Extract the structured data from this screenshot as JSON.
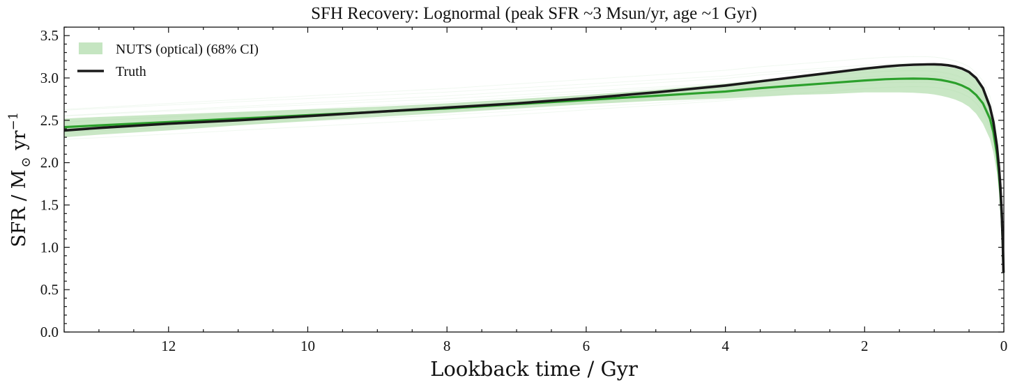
{
  "chart_data": {
    "type": "line",
    "title": "SFH Recovery: Lognormal (peak SFR ~3 Msun/yr, age ~1 Gyr)",
    "xlabel": "Lookback time / Gyr",
    "ylabel": "SFR / M",
    "ylabel_sub": "⊙",
    "ylabel_unit": "yr",
    "ylabel_exp": "−1",
    "xlim": [
      13.5,
      0
    ],
    "ylim": [
      0,
      3.6
    ],
    "x_ticks": [
      12,
      10,
      8,
      6,
      4,
      2,
      0
    ],
    "y_ticks": [
      0.0,
      0.5,
      1.0,
      1.5,
      2.0,
      2.5,
      3.0,
      3.5
    ],
    "x_tick_labels": [
      "12",
      "10",
      "8",
      "6",
      "4",
      "2",
      "0"
    ],
    "y_tick_labels": [
      "0.0",
      "0.5",
      "1.0",
      "1.5",
      "2.0",
      "2.5",
      "3.0",
      "3.5"
    ],
    "legend": {
      "placement": "top-left",
      "entries": [
        {
          "label": "NUTS (optical) (68% CI)",
          "kind": "band"
        },
        {
          "label": "Truth",
          "kind": "line"
        }
      ]
    },
    "colors": {
      "truth": "#1a1a1a",
      "median": "#2ca02c",
      "band": "#b7dfb2",
      "samples": "#2ca02c"
    },
    "x": [
      13.5,
      13,
      12,
      11,
      10,
      9,
      8,
      7,
      6,
      5,
      4,
      3.5,
      3,
      2.5,
      2,
      1.7,
      1.5,
      1.3,
      1.1,
      1.0,
      0.9,
      0.8,
      0.7,
      0.6,
      0.5,
      0.4,
      0.3,
      0.2,
      0.15,
      0.1,
      0.07,
      0.05,
      0.03,
      0.015,
      0.005
    ],
    "series": [
      {
        "name": "Truth",
        "role": "truth",
        "values": [
          2.38,
          2.41,
          2.46,
          2.5,
          2.55,
          2.6,
          2.65,
          2.7,
          2.76,
          2.83,
          2.91,
          2.96,
          3.01,
          3.06,
          3.11,
          3.135,
          3.148,
          3.156,
          3.16,
          3.161,
          3.158,
          3.15,
          3.135,
          3.11,
          3.07,
          3.0,
          2.88,
          2.66,
          2.48,
          2.2,
          1.95,
          1.72,
          1.4,
          1.05,
          0.7
        ]
      },
      {
        "role": "median",
        "values": [
          2.42,
          2.44,
          2.48,
          2.52,
          2.56,
          2.6,
          2.64,
          2.69,
          2.74,
          2.79,
          2.84,
          2.88,
          2.91,
          2.94,
          2.97,
          2.985,
          2.99,
          2.993,
          2.99,
          2.985,
          2.975,
          2.96,
          2.94,
          2.91,
          2.87,
          2.8,
          2.7,
          2.52,
          2.36,
          2.1,
          1.86,
          1.64,
          1.35,
          1.02,
          0.7
        ]
      },
      {
        "role": "ci-lower",
        "values": [
          2.3,
          2.33,
          2.38,
          2.44,
          2.49,
          2.54,
          2.59,
          2.64,
          2.69,
          2.73,
          2.76,
          2.78,
          2.8,
          2.81,
          2.83,
          2.83,
          2.83,
          2.825,
          2.815,
          2.805,
          2.79,
          2.77,
          2.745,
          2.71,
          2.66,
          2.58,
          2.46,
          2.28,
          2.12,
          1.88,
          1.66,
          1.46,
          1.18,
          0.86,
          0.55
        ]
      },
      {
        "role": "ci-upper",
        "values": [
          2.52,
          2.54,
          2.57,
          2.6,
          2.63,
          2.66,
          2.7,
          2.75,
          2.8,
          2.86,
          2.93,
          2.97,
          3.02,
          3.06,
          3.1,
          3.12,
          3.13,
          3.14,
          3.145,
          3.145,
          3.14,
          3.13,
          3.115,
          3.09,
          3.05,
          2.98,
          2.88,
          2.7,
          2.54,
          2.28,
          2.04,
          1.8,
          1.5,
          1.16,
          0.82
        ]
      }
    ],
    "posterior_sample_offsets": [
      -0.12,
      -0.08,
      -0.05,
      -0.02,
      0.02,
      0.05,
      0.08,
      0.11,
      0.15,
      0.19,
      0.24
    ],
    "posterior_sample_tilts": [
      0.06,
      -0.04,
      0.03,
      -0.06,
      0.05,
      -0.02,
      0.04,
      -0.05,
      0.02,
      -0.03,
      0.05
    ]
  }
}
